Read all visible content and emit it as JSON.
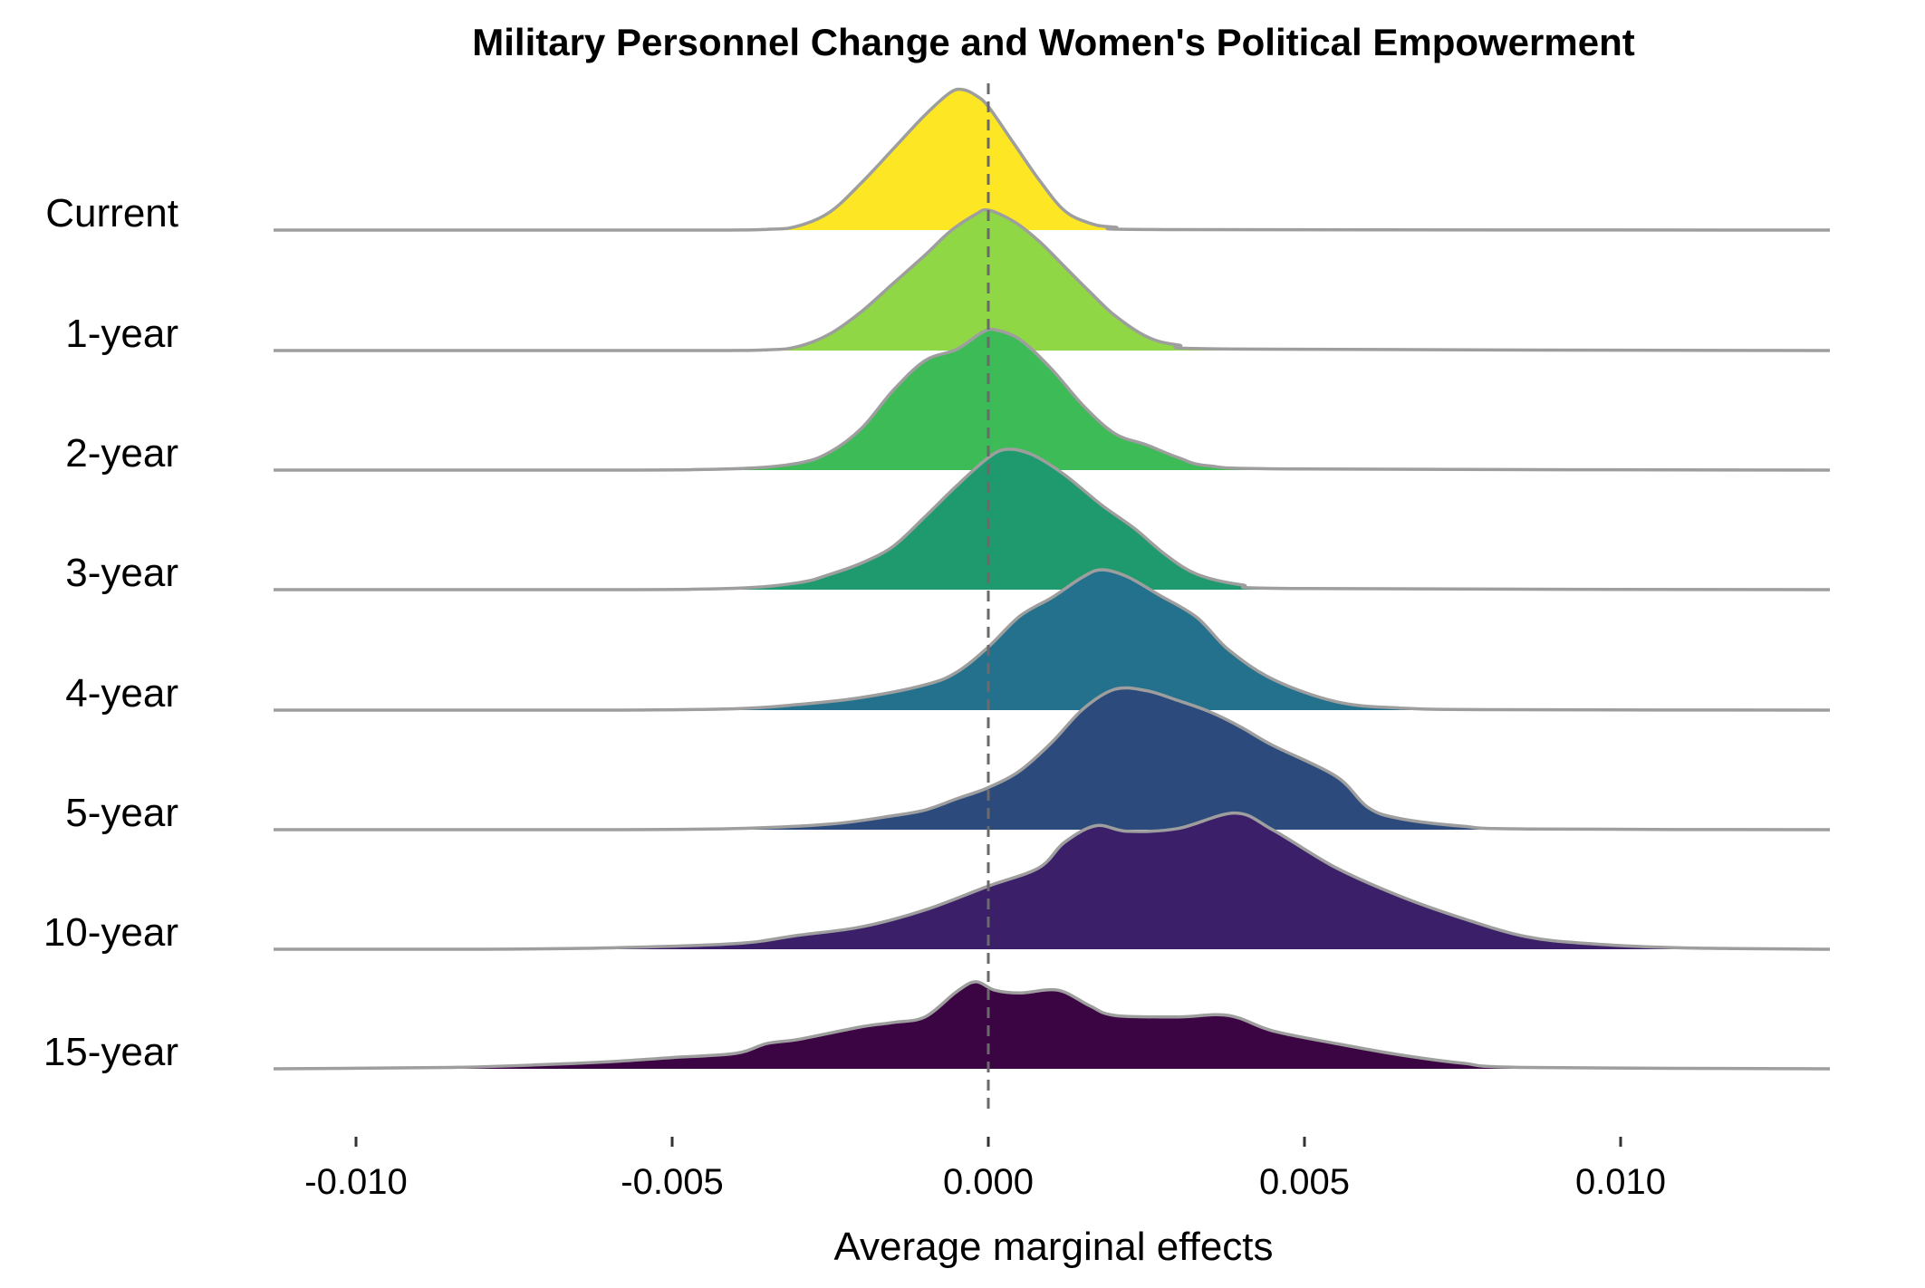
{
  "chart_data": {
    "type": "ridgeline",
    "title": "Military Personnel Change and Women's Political Empowerment",
    "xlabel": "Average marginal effects",
    "ylabel": "",
    "xlim": [
      -0.0112,
      0.0133
    ],
    "x_ticks": [
      -0.01,
      -0.005,
      0.0,
      0.005,
      0.01
    ],
    "x_tick_labels": [
      "-0.010",
      "-0.005",
      "0.000",
      "0.005",
      "0.010"
    ],
    "reference_line": {
      "x": 0.0,
      "style": "dashed"
    },
    "grid": false,
    "legend": "none",
    "outline_color": "#9e9e9e",
    "series": [
      {
        "name": "Current",
        "color": "#fde725",
        "points": [
          [
            -0.0112,
            0
          ],
          [
            -0.005,
            0
          ],
          [
            -0.0035,
            0.005
          ],
          [
            -0.003,
            0.03
          ],
          [
            -0.0025,
            0.13
          ],
          [
            -0.002,
            0.34
          ],
          [
            -0.0015,
            0.58
          ],
          [
            -0.001,
            0.82
          ],
          [
            -0.0006,
            0.98
          ],
          [
            -0.0004,
            1.0
          ],
          [
            -0.0002,
            0.96
          ],
          [
            0.0,
            0.88
          ],
          [
            0.0004,
            0.62
          ],
          [
            0.0008,
            0.36
          ],
          [
            0.0012,
            0.14
          ],
          [
            0.0016,
            0.05
          ],
          [
            0.002,
            0.02
          ],
          [
            0.003,
            0.003
          ],
          [
            0.0133,
            0
          ]
        ]
      },
      {
        "name": "1-year",
        "color": "#8fd744",
        "points": [
          [
            -0.0112,
            0
          ],
          [
            -0.005,
            0
          ],
          [
            -0.0035,
            0.005
          ],
          [
            -0.003,
            0.03
          ],
          [
            -0.0025,
            0.12
          ],
          [
            -0.002,
            0.28
          ],
          [
            -0.0015,
            0.48
          ],
          [
            -0.001,
            0.68
          ],
          [
            -0.0006,
            0.85
          ],
          [
            -0.0002,
            0.97
          ],
          [
            0.0,
            1.0
          ],
          [
            0.0004,
            0.92
          ],
          [
            0.0008,
            0.78
          ],
          [
            0.0012,
            0.6
          ],
          [
            0.0016,
            0.42
          ],
          [
            0.002,
            0.25
          ],
          [
            0.0025,
            0.1
          ],
          [
            0.003,
            0.04
          ],
          [
            0.004,
            0.01
          ],
          [
            0.0133,
            0
          ]
        ]
      },
      {
        "name": "2-year",
        "color": "#3cbb57",
        "points": [
          [
            -0.0112,
            0
          ],
          [
            -0.006,
            0
          ],
          [
            -0.004,
            0.01
          ],
          [
            -0.003,
            0.05
          ],
          [
            -0.0025,
            0.13
          ],
          [
            -0.002,
            0.3
          ],
          [
            -0.0015,
            0.57
          ],
          [
            -0.001,
            0.78
          ],
          [
            -0.0005,
            0.86
          ],
          [
            -0.0001,
            0.98
          ],
          [
            0.0001,
            1.0
          ],
          [
            0.0005,
            0.93
          ],
          [
            0.001,
            0.72
          ],
          [
            0.0015,
            0.46
          ],
          [
            0.002,
            0.26
          ],
          [
            0.0025,
            0.18
          ],
          [
            0.003,
            0.09
          ],
          [
            0.0035,
            0.03
          ],
          [
            0.005,
            0.008
          ],
          [
            0.0133,
            0
          ]
        ]
      },
      {
        "name": "3-year",
        "color": "#1f9a6e",
        "points": [
          [
            -0.0112,
            0
          ],
          [
            -0.006,
            0
          ],
          [
            -0.004,
            0.01
          ],
          [
            -0.003,
            0.05
          ],
          [
            -0.0025,
            0.11
          ],
          [
            -0.002,
            0.19
          ],
          [
            -0.0015,
            0.31
          ],
          [
            -0.001,
            0.52
          ],
          [
            -0.0005,
            0.74
          ],
          [
            0.0,
            0.94
          ],
          [
            0.0003,
            1.0
          ],
          [
            0.0007,
            0.96
          ],
          [
            0.0012,
            0.82
          ],
          [
            0.0018,
            0.6
          ],
          [
            0.0023,
            0.44
          ],
          [
            0.0028,
            0.25
          ],
          [
            0.0033,
            0.11
          ],
          [
            0.004,
            0.035
          ],
          [
            0.005,
            0.008
          ],
          [
            0.0133,
            0
          ]
        ]
      },
      {
        "name": "4-year",
        "color": "#23718d",
        "points": [
          [
            -0.0112,
            0
          ],
          [
            -0.006,
            0
          ],
          [
            -0.004,
            0.01
          ],
          [
            -0.003,
            0.04
          ],
          [
            -0.002,
            0.09
          ],
          [
            -0.001,
            0.18
          ],
          [
            -0.0005,
            0.27
          ],
          [
            0.0,
            0.45
          ],
          [
            0.0005,
            0.67
          ],
          [
            0.001,
            0.8
          ],
          [
            0.0015,
            0.95
          ],
          [
            0.0018,
            1.0
          ],
          [
            0.0022,
            0.95
          ],
          [
            0.0027,
            0.82
          ],
          [
            0.0033,
            0.66
          ],
          [
            0.0038,
            0.43
          ],
          [
            0.0045,
            0.22
          ],
          [
            0.0055,
            0.06
          ],
          [
            0.0065,
            0.015
          ],
          [
            0.008,
            0.003
          ],
          [
            0.0133,
            0
          ]
        ]
      },
      {
        "name": "5-year",
        "color": "#2c4b7c",
        "points": [
          [
            -0.0112,
            0
          ],
          [
            -0.006,
            0
          ],
          [
            -0.004,
            0.008
          ],
          [
            -0.0025,
            0.04
          ],
          [
            -0.0015,
            0.1
          ],
          [
            -0.001,
            0.14
          ],
          [
            -0.0005,
            0.22
          ],
          [
            0.0,
            0.3
          ],
          [
            0.0005,
            0.42
          ],
          [
            0.001,
            0.62
          ],
          [
            0.0015,
            0.86
          ],
          [
            0.002,
            1.0
          ],
          [
            0.0025,
            0.99
          ],
          [
            0.003,
            0.92
          ],
          [
            0.0035,
            0.84
          ],
          [
            0.004,
            0.73
          ],
          [
            0.0045,
            0.6
          ],
          [
            0.0055,
            0.38
          ],
          [
            0.006,
            0.16
          ],
          [
            0.0065,
            0.08
          ],
          [
            0.0075,
            0.025
          ],
          [
            0.0085,
            0.005
          ],
          [
            0.0133,
            0
          ]
        ]
      },
      {
        "name": "10-year",
        "color": "#3b1f68",
        "points": [
          [
            -0.0112,
            0
          ],
          [
            -0.008,
            0
          ],
          [
            -0.006,
            0.01
          ],
          [
            -0.004,
            0.04
          ],
          [
            -0.003,
            0.1
          ],
          [
            -0.002,
            0.16
          ],
          [
            -0.001,
            0.28
          ],
          [
            0.0,
            0.45
          ],
          [
            0.0008,
            0.58
          ],
          [
            0.0012,
            0.76
          ],
          [
            0.0017,
            0.88
          ],
          [
            0.0022,
            0.84
          ],
          [
            0.003,
            0.86
          ],
          [
            0.0039,
            0.97
          ],
          [
            0.0045,
            0.85
          ],
          [
            0.0055,
            0.58
          ],
          [
            0.0065,
            0.38
          ],
          [
            0.0075,
            0.22
          ],
          [
            0.0085,
            0.09
          ],
          [
            0.0095,
            0.04
          ],
          [
            0.011,
            0.01
          ],
          [
            0.0133,
            0
          ]
        ]
      },
      {
        "name": "15-year",
        "color": "#3b0442",
        "points": [
          [
            -0.0112,
            0
          ],
          [
            -0.0085,
            0.01
          ],
          [
            -0.007,
            0.03
          ],
          [
            -0.006,
            0.05
          ],
          [
            -0.005,
            0.08
          ],
          [
            -0.004,
            0.11
          ],
          [
            -0.0035,
            0.18
          ],
          [
            -0.003,
            0.21
          ],
          [
            -0.002,
            0.3
          ],
          [
            -0.0015,
            0.33
          ],
          [
            -0.001,
            0.37
          ],
          [
            -0.0005,
            0.55
          ],
          [
            -0.0002,
            0.62
          ],
          [
            0.0001,
            0.56
          ],
          [
            0.0005,
            0.54
          ],
          [
            0.0011,
            0.56
          ],
          [
            0.0016,
            0.45
          ],
          [
            0.002,
            0.38
          ],
          [
            0.003,
            0.37
          ],
          [
            0.0038,
            0.38
          ],
          [
            0.0045,
            0.27
          ],
          [
            0.0055,
            0.18
          ],
          [
            0.0065,
            0.1
          ],
          [
            0.0075,
            0.04
          ],
          [
            0.0085,
            0.01
          ],
          [
            0.0133,
            0
          ]
        ]
      }
    ]
  }
}
